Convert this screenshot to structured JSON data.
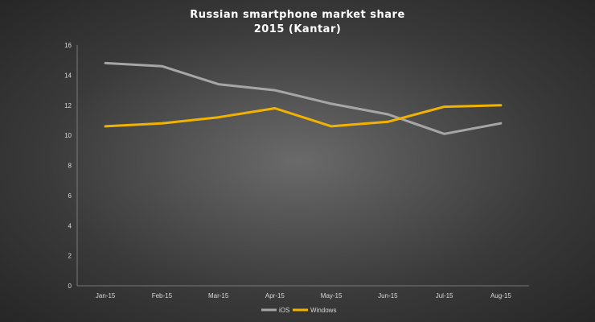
{
  "chart_data": {
    "type": "line",
    "title": "Russian  smartphone  market  share",
    "subtitle": "2015 (Kantar)",
    "xlabel": "",
    "ylabel": "",
    "categories": [
      "Jan-15",
      "Feb-15",
      "Mar-15",
      "Apr-15",
      "May-15",
      "Jun-15",
      "Jul-15",
      "Aug-15"
    ],
    "ylim": [
      0,
      16
    ],
    "yticks": [
      0,
      2,
      4,
      6,
      8,
      10,
      12,
      14,
      16
    ],
    "grid": false,
    "legend_position": "bottom",
    "series": [
      {
        "name": "iOS",
        "color": "#a6a6a6",
        "values": [
          14.8,
          14.6,
          13.4,
          13.0,
          12.1,
          11.4,
          10.1,
          10.8
        ]
      },
      {
        "name": "Windows",
        "color": "#f2b200",
        "values": [
          10.6,
          10.8,
          11.2,
          11.8,
          10.6,
          10.9,
          11.9,
          12.0
        ]
      }
    ]
  }
}
